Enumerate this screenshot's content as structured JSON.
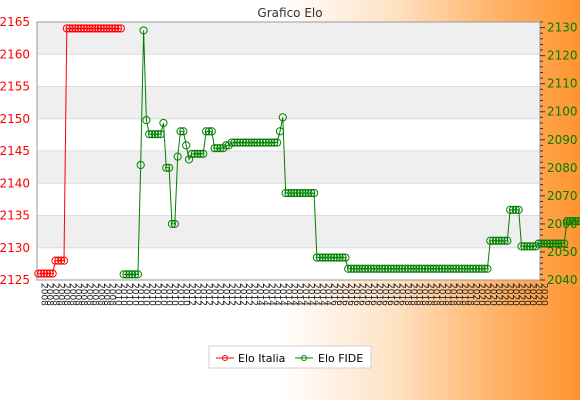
{
  "chart_data": {
    "type": "line",
    "title": "Grafico Elo",
    "grid": true,
    "legend_position": "bottom",
    "left_axis": {
      "ylim": [
        2125,
        2165
      ],
      "ticks": [
        2125,
        2130,
        2135,
        2140,
        2145,
        2150,
        2155,
        2160,
        2165
      ],
      "color": "#ff0000"
    },
    "right_axis": {
      "ylim": [
        2040,
        2132
      ],
      "ticks": [
        2040,
        2050,
        2060,
        2070,
        2080,
        2090,
        2100,
        2110,
        2120,
        2130
      ],
      "color": "#008000"
    },
    "series": [
      {
        "name": "Elo Italia",
        "axis": "left",
        "color": "#ff0000",
        "values": [
          2126,
          2126,
          2126,
          2126,
          2126,
          2126,
          2128,
          2128,
          2128,
          2128,
          2164,
          2164,
          2164,
          2164,
          2164,
          2164,
          2164,
          2164,
          2164,
          2164,
          2164,
          2164,
          2164,
          2164,
          2164,
          2164,
          2164,
          2164,
          2164,
          2164,
          null,
          null,
          null,
          null,
          null,
          null,
          null,
          null,
          null,
          null,
          null,
          null,
          null,
          null,
          null,
          null,
          null,
          null,
          null,
          null,
          null,
          null,
          null,
          null,
          null,
          null,
          null,
          null,
          null,
          null,
          null,
          null,
          null,
          null,
          null,
          null,
          null,
          null,
          null,
          null,
          null,
          null,
          null,
          null,
          null,
          null,
          null,
          null,
          null,
          null,
          null,
          null,
          null,
          null,
          null,
          null,
          null,
          null,
          null,
          null,
          null,
          null,
          null,
          null,
          null,
          null,
          null,
          null,
          null,
          null,
          null,
          null,
          null,
          null,
          null,
          null,
          null,
          null,
          null,
          null,
          null,
          null,
          null,
          null,
          null,
          null,
          null,
          null,
          null,
          null,
          null,
          null,
          null,
          null,
          null,
          null,
          null,
          null,
          null,
          null,
          null,
          null,
          null,
          null,
          null,
          null,
          null,
          null,
          null,
          null,
          null,
          null,
          null,
          null,
          null,
          null,
          null,
          null,
          null,
          null,
          null,
          null,
          null,
          null,
          null,
          null,
          null,
          null,
          null,
          null,
          null,
          null,
          null,
          null,
          null,
          null,
          null,
          null,
          null,
          null,
          null,
          null,
          null,
          null,
          null,
          null,
          null
        ]
      },
      {
        "name": "Elo FIDE",
        "axis": "right",
        "color": "#008000",
        "values": [
          null,
          null,
          null,
          null,
          null,
          null,
          null,
          null,
          null,
          null,
          null,
          null,
          null,
          null,
          null,
          null,
          null,
          null,
          null,
          null,
          null,
          null,
          null,
          null,
          null,
          null,
          null,
          null,
          null,
          null,
          2042,
          2042,
          2042,
          2042,
          2042,
          2042,
          2081,
          2129,
          2097,
          2092,
          2092,
          2092,
          2092,
          2092,
          2096,
          2080,
          2080,
          2060,
          2060,
          2084,
          2093,
          2093,
          2088,
          2083,
          2085,
          2085,
          2085,
          2085,
          2085,
          2093,
          2093,
          2093,
          2087,
          2087,
          2087,
          2087,
          2088,
          2088,
          2089,
          2089,
          2089,
          2089,
          2089,
          2089,
          2089,
          2089,
          2089,
          2089,
          2089,
          2089,
          2089,
          2089,
          2089,
          2089,
          2089,
          2093,
          2098,
          2071,
          2071,
          2071,
          2071,
          2071,
          2071,
          2071,
          2071,
          2071,
          2071,
          2071,
          2048,
          2048,
          2048,
          2048,
          2048,
          2048,
          2048,
          2048,
          2048,
          2048,
          2048,
          2044,
          2044,
          2044,
          2044,
          2044,
          2044,
          2044,
          2044,
          2044,
          2044,
          2044,
          2044,
          2044,
          2044,
          2044,
          2044,
          2044,
          2044,
          2044,
          2044,
          2044,
          2044,
          2044,
          2044,
          2044,
          2044,
          2044,
          2044,
          2044,
          2044,
          2044,
          2044,
          2044,
          2044,
          2044,
          2044,
          2044,
          2044,
          2044,
          2044,
          2044,
          2044,
          2044,
          2044,
          2044,
          2044,
          2044,
          2044,
          2044,
          2044,
          2054,
          2054,
          2054,
          2054,
          2054,
          2054,
          2054,
          2065,
          2065,
          2065,
          2065,
          2052,
          2052,
          2052,
          2052,
          2052,
          2052,
          2053,
          2053,
          2053,
          2053,
          2053,
          2053,
          2053,
          2053,
          2053,
          2053,
          2061,
          2061,
          2061,
          2061,
          2061,
          2061,
          2061,
          2061,
          2061
        ]
      }
    ],
    "x_label_rows": [
      "2008",
      "2010",
      "2012",
      "2014",
      "2016",
      "2018",
      "2020"
    ]
  }
}
